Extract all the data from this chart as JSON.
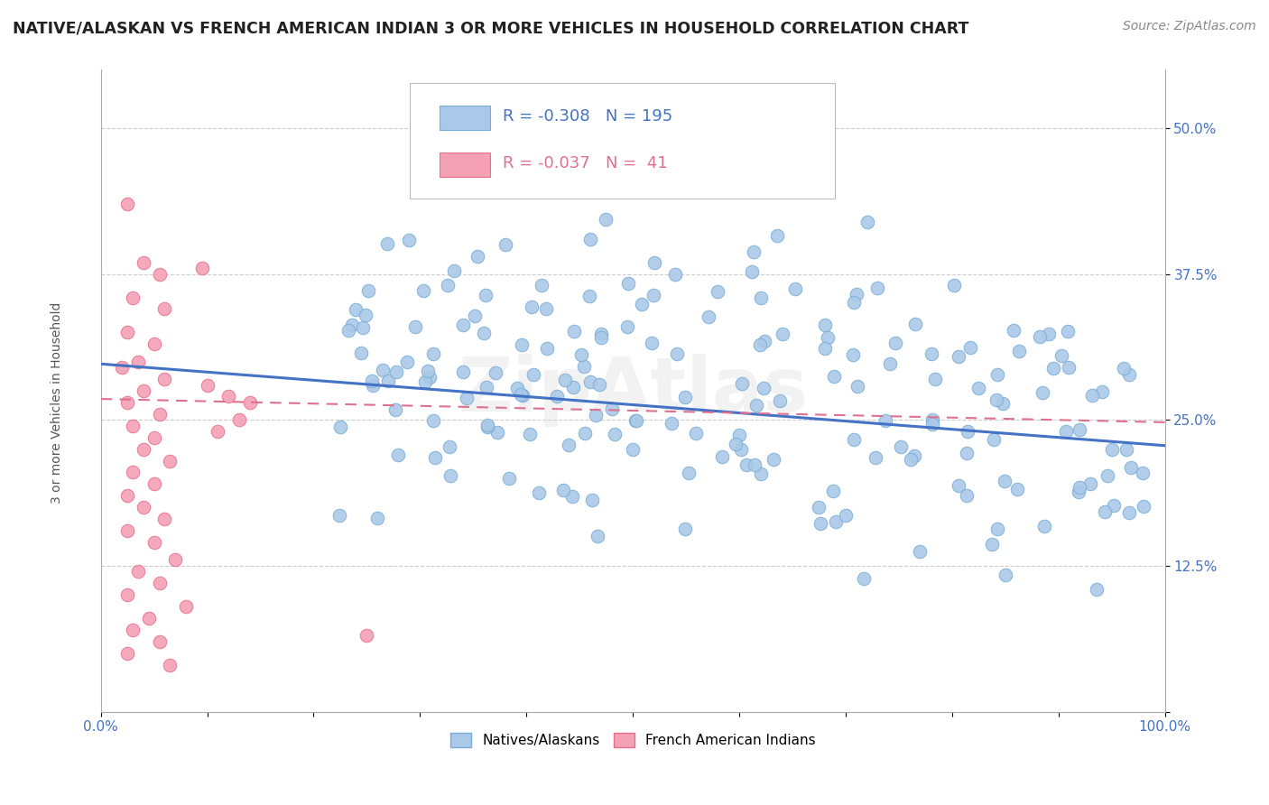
{
  "title": "NATIVE/ALASKAN VS FRENCH AMERICAN INDIAN 3 OR MORE VEHICLES IN HOUSEHOLD CORRELATION CHART",
  "source": "Source: ZipAtlas.com",
  "ylabel": "3 or more Vehicles in Household",
  "xlim": [
    0,
    1.0
  ],
  "ylim": [
    0,
    0.55
  ],
  "xticks": [
    0.0,
    0.1,
    0.2,
    0.3,
    0.4,
    0.5,
    0.6,
    0.7,
    0.8,
    0.9,
    1.0
  ],
  "xticklabels": [
    "0.0%",
    "",
    "",
    "",
    "",
    "",
    "",
    "",
    "",
    "",
    "100.0%"
  ],
  "yticks": [
    0.0,
    0.125,
    0.25,
    0.375,
    0.5
  ],
  "yticklabels": [
    "",
    "12.5%",
    "25.0%",
    "37.5%",
    "50.0%"
  ],
  "color_blue": "#aac9e8",
  "color_pink": "#f4a0b5",
  "edge_blue": "#7aadd4",
  "edge_pink": "#e8708a",
  "line_blue_color": "#4472C4",
  "line_pink_color": "#e07090",
  "blue_r": -0.308,
  "pink_r": -0.037,
  "blue_n": 195,
  "pink_n": 41,
  "blue_trend": [
    0.0,
    1.0,
    0.298,
    0.228
  ],
  "pink_trend": [
    0.0,
    1.0,
    0.268,
    0.248
  ],
  "watermark": "ZipAtlas",
  "pink_dots": [
    [
      0.025,
      0.435
    ],
    [
      0.04,
      0.385
    ],
    [
      0.055,
      0.375
    ],
    [
      0.03,
      0.355
    ],
    [
      0.06,
      0.345
    ],
    [
      0.025,
      0.325
    ],
    [
      0.05,
      0.315
    ],
    [
      0.035,
      0.3
    ],
    [
      0.02,
      0.295
    ],
    [
      0.06,
      0.285
    ],
    [
      0.04,
      0.275
    ],
    [
      0.025,
      0.265
    ],
    [
      0.055,
      0.255
    ],
    [
      0.03,
      0.245
    ],
    [
      0.05,
      0.235
    ],
    [
      0.04,
      0.225
    ],
    [
      0.065,
      0.215
    ],
    [
      0.03,
      0.205
    ],
    [
      0.05,
      0.195
    ],
    [
      0.025,
      0.185
    ],
    [
      0.04,
      0.175
    ],
    [
      0.06,
      0.165
    ],
    [
      0.025,
      0.155
    ],
    [
      0.05,
      0.145
    ],
    [
      0.07,
      0.13
    ],
    [
      0.035,
      0.12
    ],
    [
      0.055,
      0.11
    ],
    [
      0.025,
      0.1
    ],
    [
      0.08,
      0.09
    ],
    [
      0.045,
      0.08
    ],
    [
      0.03,
      0.07
    ],
    [
      0.055,
      0.06
    ],
    [
      0.025,
      0.05
    ],
    [
      0.065,
      0.04
    ],
    [
      0.25,
      0.065
    ],
    [
      0.095,
      0.38
    ],
    [
      0.1,
      0.28
    ],
    [
      0.12,
      0.27
    ],
    [
      0.14,
      0.265
    ],
    [
      0.13,
      0.25
    ],
    [
      0.11,
      0.24
    ]
  ]
}
